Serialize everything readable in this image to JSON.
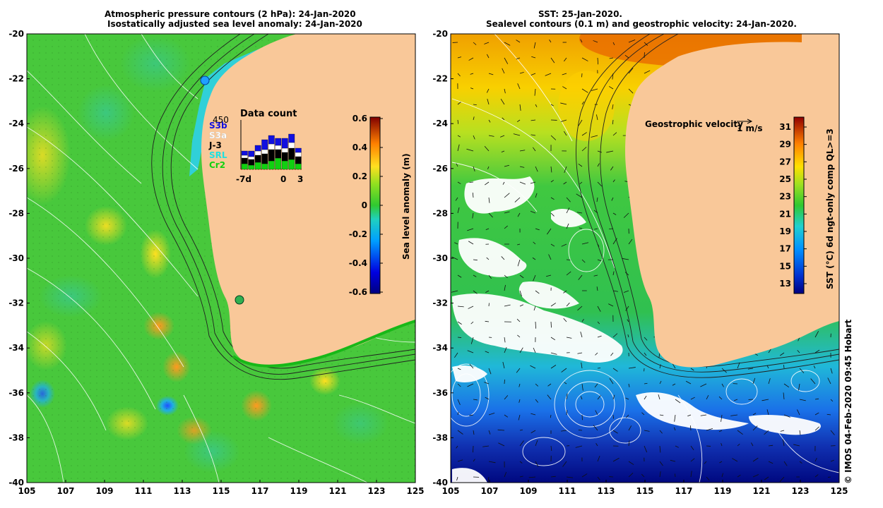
{
  "left_panel": {
    "title_line1": "Atmospheric pressure contours (2 hPa): 24-Jan-2020",
    "title_line2": "Isostatically adjusted sea level anomaly: 24-Jan-2020",
    "colorbar": {
      "label": "Sea level anomaly (m)",
      "ticks": [
        "0.6",
        "0.4",
        "0.2",
        "0",
        "-0.2",
        "-0.4",
        "-0.6"
      ],
      "range": [
        -0.6,
        0.6
      ]
    },
    "inset": {
      "title": "Data count",
      "max_label": "450",
      "x_start_label": "-7d",
      "x_zero_label": "0",
      "x_end_label": "3",
      "legend": [
        {
          "name": "S3b",
          "color": "#1010e0"
        },
        {
          "name": "S3a",
          "color": "#ffffff"
        },
        {
          "name": "J-3",
          "color": "#000000"
        },
        {
          "name": "SRL",
          "color": "#20e0e0"
        },
        {
          "name": "Cr2",
          "color": "#10d010"
        }
      ]
    }
  },
  "right_panel": {
    "title_line1": "SST: 25-Jan-2020.",
    "title_line2": "Sealevel contours (0.1 m) and geostrophic velocity: 24-Jan-2020.",
    "velocity_legend": {
      "label": "Geostrophic velocity",
      "scale": "1 m/s"
    },
    "colorbar": {
      "label": "SST (°C) 6d ngt-only comp QL>=3",
      "ticks": [
        "31",
        "29",
        "27",
        "25",
        "23",
        "21",
        "19",
        "17",
        "15",
        "13"
      ],
      "range": [
        13,
        32
      ]
    }
  },
  "axes": {
    "lat_ticks": [
      "-20",
      "-22",
      "-24",
      "-26",
      "-28",
      "-30",
      "-32",
      "-34",
      "-36",
      "-38",
      "-40"
    ],
    "lon_ticks": [
      "105",
      "107",
      "109",
      "111",
      "113",
      "115",
      "117",
      "119",
      "121",
      "123",
      "125"
    ]
  },
  "credit": "© IMOS 04-Feb-2020 09:45 Hobart",
  "colors": {
    "land": "#f9c899",
    "sla_mid": "#3cc83c",
    "sst_warm": "#e05a00"
  }
}
